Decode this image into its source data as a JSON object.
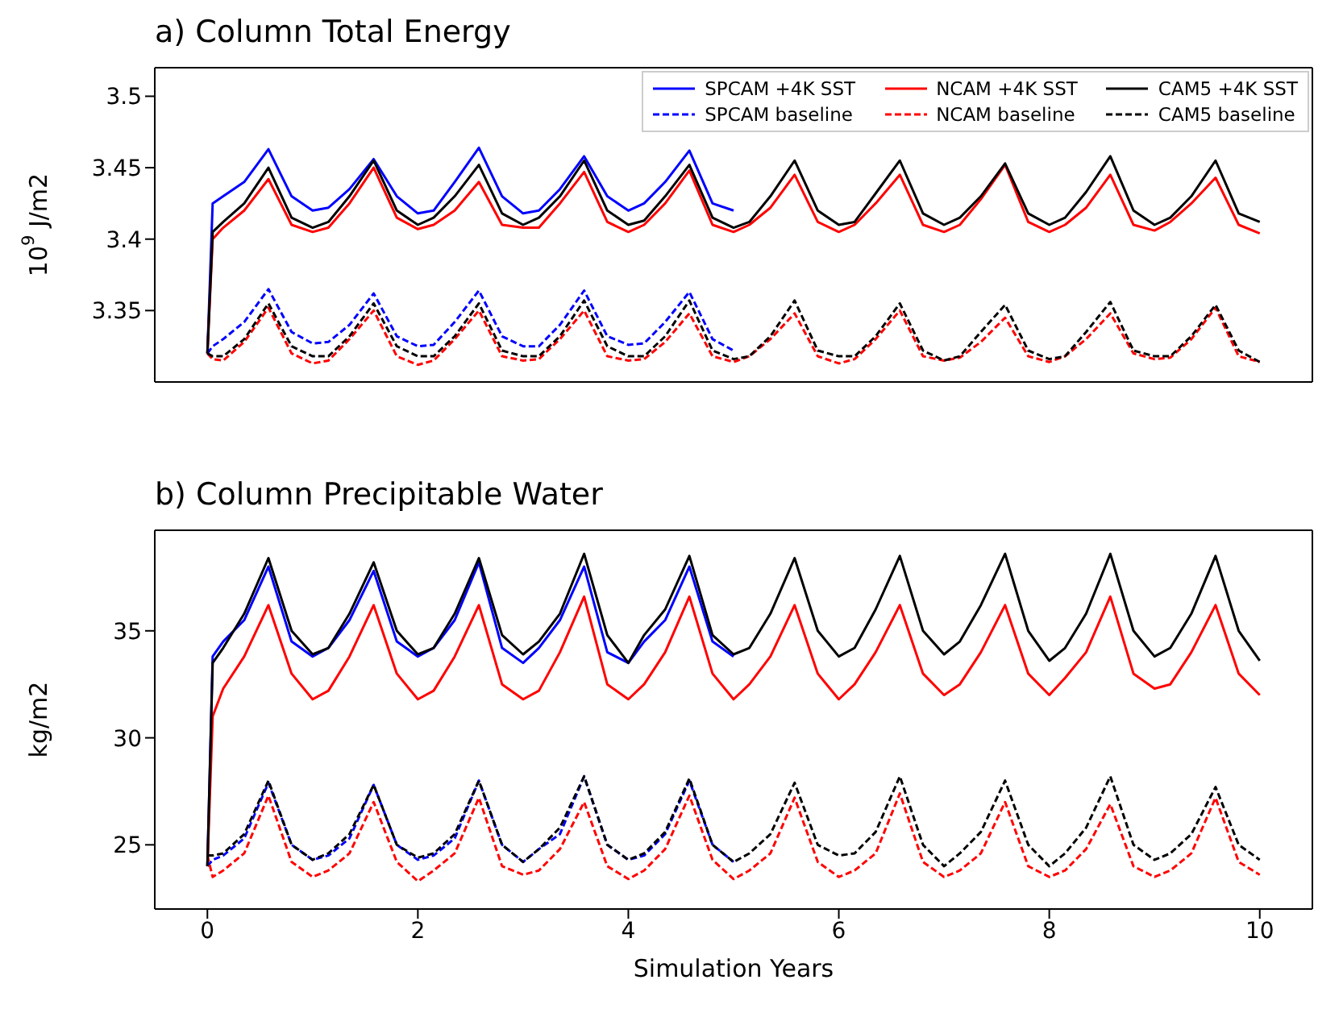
{
  "chart_data": [
    {
      "type": "line",
      "title": "a) Column Total Energy",
      "ylabel": "10$^{9}$ J/m2",
      "xlim": [
        -0.5,
        10.5
      ],
      "xticks": [
        0,
        2,
        4,
        6,
        8,
        10
      ],
      "ylim": [
        3.3,
        3.52
      ],
      "yticks": [
        3.35,
        3.4,
        3.45,
        3.5
      ],
      "tick_labels": "y",
      "legend": "top right",
      "x": [
        0,
        0.05,
        0.15,
        0.35,
        0.58,
        0.8,
        1,
        1.15,
        1.35,
        1.58,
        1.8,
        2,
        2.15,
        2.35,
        2.58,
        2.8,
        3,
        3.15,
        3.35,
        3.58,
        3.8,
        4,
        4.15,
        4.35,
        4.58,
        4.8,
        5,
        5.15,
        5.35,
        5.58,
        5.8,
        6,
        6.15,
        6.35,
        6.58,
        6.8,
        7,
        7.15,
        7.35,
        7.58,
        7.8,
        8,
        8.15,
        8.35,
        8.58,
        8.8,
        9,
        9.15,
        9.35,
        9.58,
        9.8,
        10
      ],
      "series": [
        {
          "name": "SPCAM +4K SST",
          "color": "#0000ff",
          "line_style": "solid",
          "values": [
            3.32,
            3.425,
            3.43,
            3.44,
            3.463,
            3.43,
            3.42,
            3.422,
            3.435,
            3.456,
            3.43,
            3.418,
            3.42,
            3.44,
            3.464,
            3.43,
            3.418,
            3.42,
            3.435,
            3.458,
            3.43,
            3.42,
            3.425,
            3.44,
            3.462,
            3.425,
            3.42,
            null,
            null,
            null,
            null,
            null,
            null,
            null,
            null,
            null,
            null,
            null,
            null,
            null,
            null,
            null,
            null,
            null,
            null,
            null,
            null,
            null,
            null,
            null,
            null,
            null
          ]
        },
        {
          "name": "SPCAM baseline",
          "color": "#0000ff",
          "line_style": "dashed",
          "values": [
            3.32,
            3.325,
            3.33,
            3.342,
            3.365,
            3.335,
            3.327,
            3.328,
            3.34,
            3.362,
            3.332,
            3.325,
            3.326,
            3.342,
            3.364,
            3.332,
            3.325,
            3.325,
            3.34,
            3.364,
            3.332,
            3.326,
            3.327,
            3.342,
            3.363,
            3.33,
            3.322,
            null,
            null,
            null,
            null,
            null,
            null,
            null,
            null,
            null,
            null,
            null,
            null,
            null,
            null,
            null,
            null,
            null,
            null,
            null,
            null,
            null,
            null,
            null,
            null,
            null
          ]
        },
        {
          "name": "NCAM +4K SST",
          "color": "#ff0000",
          "line_style": "solid",
          "values": [
            3.32,
            3.4,
            3.408,
            3.42,
            3.442,
            3.41,
            3.405,
            3.408,
            3.425,
            3.45,
            3.415,
            3.407,
            3.41,
            3.42,
            3.44,
            3.41,
            3.408,
            3.408,
            3.425,
            3.447,
            3.412,
            3.405,
            3.41,
            3.425,
            3.448,
            3.41,
            3.405,
            3.41,
            3.422,
            3.445,
            3.412,
            3.405,
            3.41,
            3.425,
            3.445,
            3.41,
            3.405,
            3.41,
            3.428,
            3.452,
            3.412,
            3.405,
            3.41,
            3.422,
            3.445,
            3.41,
            3.406,
            3.412,
            3.425,
            3.443,
            3.41,
            3.404
          ]
        },
        {
          "name": "NCAM baseline",
          "color": "#ff0000",
          "line_style": "dashed",
          "values": [
            3.32,
            3.316,
            3.315,
            3.328,
            3.352,
            3.32,
            3.313,
            3.315,
            3.33,
            3.35,
            3.318,
            3.312,
            3.315,
            3.33,
            3.35,
            3.318,
            3.315,
            3.316,
            3.33,
            3.35,
            3.318,
            3.315,
            3.316,
            3.328,
            3.348,
            3.318,
            3.314,
            3.318,
            3.33,
            3.348,
            3.318,
            3.313,
            3.316,
            3.33,
            3.35,
            3.318,
            3.315,
            3.317,
            3.328,
            3.345,
            3.318,
            3.314,
            3.318,
            3.33,
            3.348,
            3.32,
            3.316,
            3.317,
            3.33,
            3.352,
            3.318,
            3.314
          ]
        },
        {
          "name": "CAM5 +4K SST",
          "color": "#000000",
          "line_style": "solid",
          "values": [
            3.32,
            3.405,
            3.412,
            3.425,
            3.45,
            3.415,
            3.408,
            3.412,
            3.43,
            3.455,
            3.42,
            3.41,
            3.415,
            3.43,
            3.452,
            3.418,
            3.41,
            3.415,
            3.43,
            3.455,
            3.42,
            3.41,
            3.413,
            3.43,
            3.452,
            3.415,
            3.408,
            3.412,
            3.43,
            3.455,
            3.42,
            3.41,
            3.412,
            3.432,
            3.455,
            3.418,
            3.41,
            3.415,
            3.43,
            3.453,
            3.418,
            3.41,
            3.415,
            3.433,
            3.458,
            3.42,
            3.41,
            3.415,
            3.43,
            3.455,
            3.418,
            3.412
          ]
        },
        {
          "name": "CAM5 baseline",
          "color": "#000000",
          "line_style": "dashed",
          "values": [
            3.32,
            3.318,
            3.318,
            3.33,
            3.355,
            3.325,
            3.318,
            3.318,
            3.332,
            3.355,
            3.325,
            3.318,
            3.318,
            3.332,
            3.355,
            3.322,
            3.318,
            3.318,
            3.332,
            3.357,
            3.325,
            3.318,
            3.318,
            3.332,
            3.357,
            3.322,
            3.316,
            3.318,
            3.332,
            3.357,
            3.322,
            3.318,
            3.318,
            3.332,
            3.355,
            3.322,
            3.315,
            3.318,
            3.335,
            3.354,
            3.322,
            3.316,
            3.318,
            3.335,
            3.356,
            3.322,
            3.318,
            3.318,
            3.332,
            3.354,
            3.322,
            3.314
          ]
        }
      ]
    },
    {
      "type": "line",
      "title": "b) Column Precipitable Water",
      "xlabel": "Simulation Years",
      "ylabel": "kg/m2",
      "xlim": [
        -0.5,
        10.5
      ],
      "xticks": [
        0,
        2,
        4,
        6,
        8,
        10
      ],
      "ylim": [
        22,
        39.7
      ],
      "yticks": [
        25,
        30,
        35
      ],
      "x": [
        0,
        0.05,
        0.15,
        0.35,
        0.58,
        0.8,
        1,
        1.15,
        1.35,
        1.58,
        1.8,
        2,
        2.15,
        2.35,
        2.58,
        2.8,
        3,
        3.15,
        3.35,
        3.58,
        3.8,
        4,
        4.15,
        4.35,
        4.58,
        4.8,
        5,
        5.15,
        5.35,
        5.58,
        5.8,
        6,
        6.15,
        6.35,
        6.58,
        6.8,
        7,
        7.15,
        7.35,
        7.58,
        7.8,
        8,
        8.15,
        8.35,
        8.58,
        8.8,
        9,
        9.15,
        9.35,
        9.58,
        9.8,
        10
      ],
      "series": [
        {
          "color": "#0000ff",
          "line_style": "solid",
          "values": [
            24,
            33.8,
            34.5,
            35.5,
            38,
            34.5,
            33.8,
            34.2,
            35.5,
            37.8,
            34.5,
            33.8,
            34.2,
            35.5,
            38.2,
            34.2,
            33.5,
            34.2,
            35.5,
            38,
            34,
            33.5,
            34.5,
            35.5,
            38,
            34.5,
            33.8,
            null,
            null,
            null,
            null,
            null,
            null,
            null,
            null,
            null,
            null,
            null,
            null,
            null,
            null,
            null,
            null,
            null,
            null,
            null,
            null,
            null,
            null,
            null,
            null,
            null
          ]
        },
        {
          "color": "#0000ff",
          "line_style": "dashed",
          "values": [
            24,
            24.3,
            24.5,
            25.3,
            27.9,
            25,
            24.3,
            24.5,
            25.3,
            27.8,
            25,
            24.3,
            24.5,
            25.3,
            28,
            25,
            24.2,
            24.8,
            25.5,
            28.2,
            25,
            24.3,
            24.5,
            25.5,
            28,
            25,
            24.2,
            null,
            null,
            null,
            null,
            null,
            null,
            null,
            null,
            null,
            null,
            null,
            null,
            null,
            null,
            null,
            null,
            null,
            null,
            null,
            null,
            null,
            null,
            null,
            null,
            null
          ]
        },
        {
          "color": "#ff0000",
          "line_style": "solid",
          "values": [
            24,
            31,
            32.3,
            33.8,
            36.2,
            33,
            31.8,
            32.2,
            33.8,
            36.2,
            33,
            31.8,
            32.2,
            33.8,
            36.2,
            32.5,
            31.8,
            32.2,
            34,
            36.6,
            32.5,
            31.8,
            32.5,
            34,
            36.6,
            33,
            31.8,
            32.5,
            33.8,
            36.2,
            33,
            31.8,
            32.5,
            34,
            36.2,
            33,
            32,
            32.5,
            34,
            36.2,
            33,
            32,
            32.8,
            34,
            36.6,
            33,
            32.3,
            32.5,
            34,
            36.2,
            33,
            32
          ]
        },
        {
          "color": "#ff0000",
          "line_style": "dashed",
          "values": [
            24.5,
            23.5,
            23.8,
            24.6,
            27.3,
            24.2,
            23.5,
            23.8,
            24.6,
            27,
            24.2,
            23.3,
            23.8,
            24.6,
            27.2,
            24,
            23.6,
            23.8,
            24.8,
            27,
            24,
            23.4,
            23.8,
            24.8,
            27.3,
            24.3,
            23.4,
            23.8,
            24.6,
            27.2,
            24.2,
            23.5,
            23.8,
            24.6,
            27.4,
            24.2,
            23.5,
            23.8,
            24.6,
            27,
            24,
            23.5,
            23.8,
            24.8,
            26.9,
            24,
            23.5,
            23.8,
            24.6,
            27.2,
            24.2,
            23.6
          ]
        },
        {
          "color": "#000000",
          "line_style": "solid",
          "values": [
            24,
            33.5,
            34.2,
            35.8,
            38.4,
            35,
            33.9,
            34.2,
            35.8,
            38.2,
            35,
            33.9,
            34.2,
            35.8,
            38.4,
            34.8,
            33.9,
            34.5,
            35.8,
            38.6,
            34.8,
            33.5,
            34.8,
            36,
            38.5,
            34.8,
            33.9,
            34.2,
            35.8,
            38.4,
            35,
            33.8,
            34.2,
            36,
            38.5,
            35,
            33.9,
            34.5,
            36.2,
            38.6,
            35,
            33.6,
            34.2,
            35.8,
            38.6,
            35,
            33.8,
            34.2,
            35.8,
            38.5,
            35,
            33.6
          ]
        },
        {
          "color": "#000000",
          "line_style": "dashed",
          "values": [
            24.5,
            24.5,
            24.6,
            25.5,
            28,
            25,
            24.3,
            24.6,
            25.5,
            27.8,
            25,
            24.4,
            24.6,
            25.5,
            28,
            25,
            24.2,
            24.8,
            25.8,
            28.2,
            25,
            24.3,
            24.6,
            25.6,
            28.1,
            25,
            24.2,
            24.6,
            25.5,
            27.9,
            25,
            24.5,
            24.6,
            25.6,
            28.2,
            25,
            24,
            24.6,
            25.6,
            28,
            25,
            24,
            24.6,
            25.8,
            28.2,
            25,
            24.3,
            24.6,
            25.5,
            27.7,
            25,
            24.3
          ]
        }
      ]
    }
  ]
}
